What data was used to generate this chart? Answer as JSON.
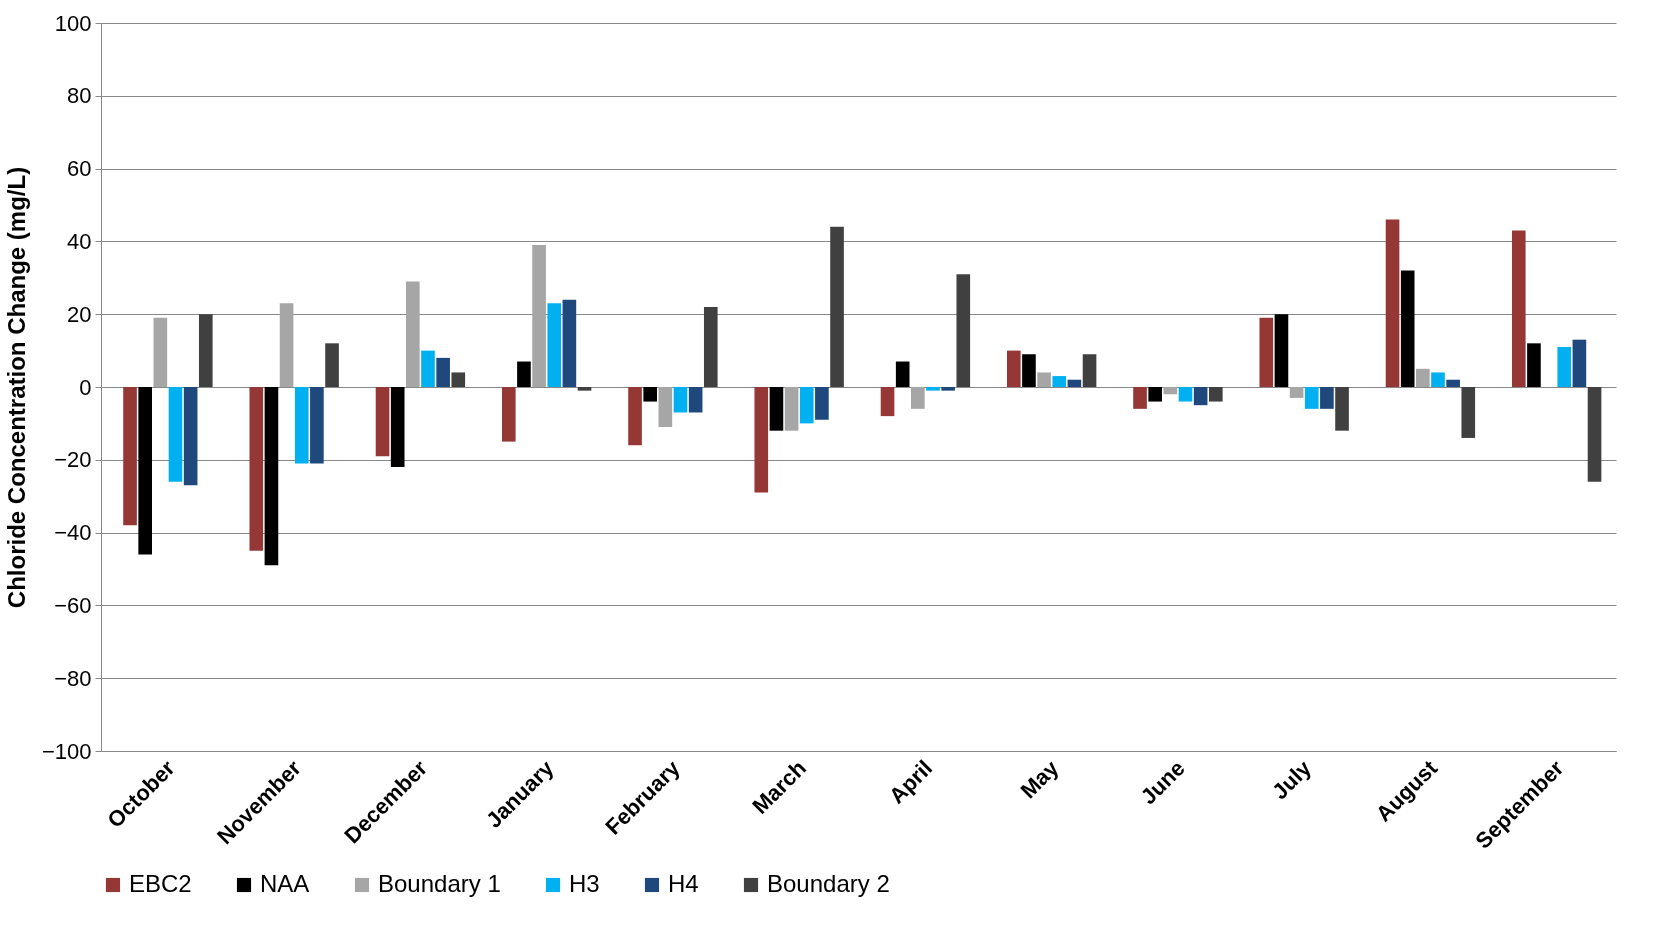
{
  "chart_data": {
    "type": "bar",
    "ylabel": "Chloride Concentration Change (mg/L)",
    "categories": [
      "October",
      "November",
      "December",
      "January",
      "February",
      "March",
      "April",
      "May",
      "June",
      "July",
      "August",
      "September"
    ],
    "series": [
      {
        "name": "EBC2",
        "color": "#953735",
        "values": [
          -38,
          -45,
          -19,
          -15,
          -16,
          -29,
          -8,
          10,
          -6,
          19,
          46,
          43
        ]
      },
      {
        "name": "NAA",
        "color": "#000000",
        "values": [
          -46,
          -49,
          -22,
          7,
          -4,
          -12,
          7,
          9,
          -4,
          20,
          32,
          12
        ]
      },
      {
        "name": "Boundary 1",
        "color": "#a6a6a6",
        "values": [
          19,
          23,
          29,
          39,
          -11,
          -12,
          -6,
          4,
          -2,
          -3,
          5,
          null
        ]
      },
      {
        "name": "H3",
        "color": "#00b0f0",
        "values": [
          -26,
          -21,
          10,
          23,
          -7,
          -10,
          -1,
          3,
          -4,
          -6,
          4,
          11
        ]
      },
      {
        "name": "H4",
        "color": "#1f497d",
        "values": [
          -27,
          -21,
          8,
          24,
          -7,
          -9,
          -1,
          2,
          -5,
          -6,
          2,
          13
        ]
      },
      {
        "name": "Boundary 2",
        "color": "#404040",
        "values": [
          20,
          12,
          4,
          -1,
          22,
          44,
          31,
          9,
          -4,
          -12,
          -14,
          -26
        ]
      }
    ],
    "ylim": [
      -100,
      100
    ],
    "yticks": [
      -100,
      -80,
      -60,
      -40,
      -20,
      0,
      20,
      40,
      60,
      80,
      100
    ],
    "grid": "y",
    "legend": "bottom"
  }
}
